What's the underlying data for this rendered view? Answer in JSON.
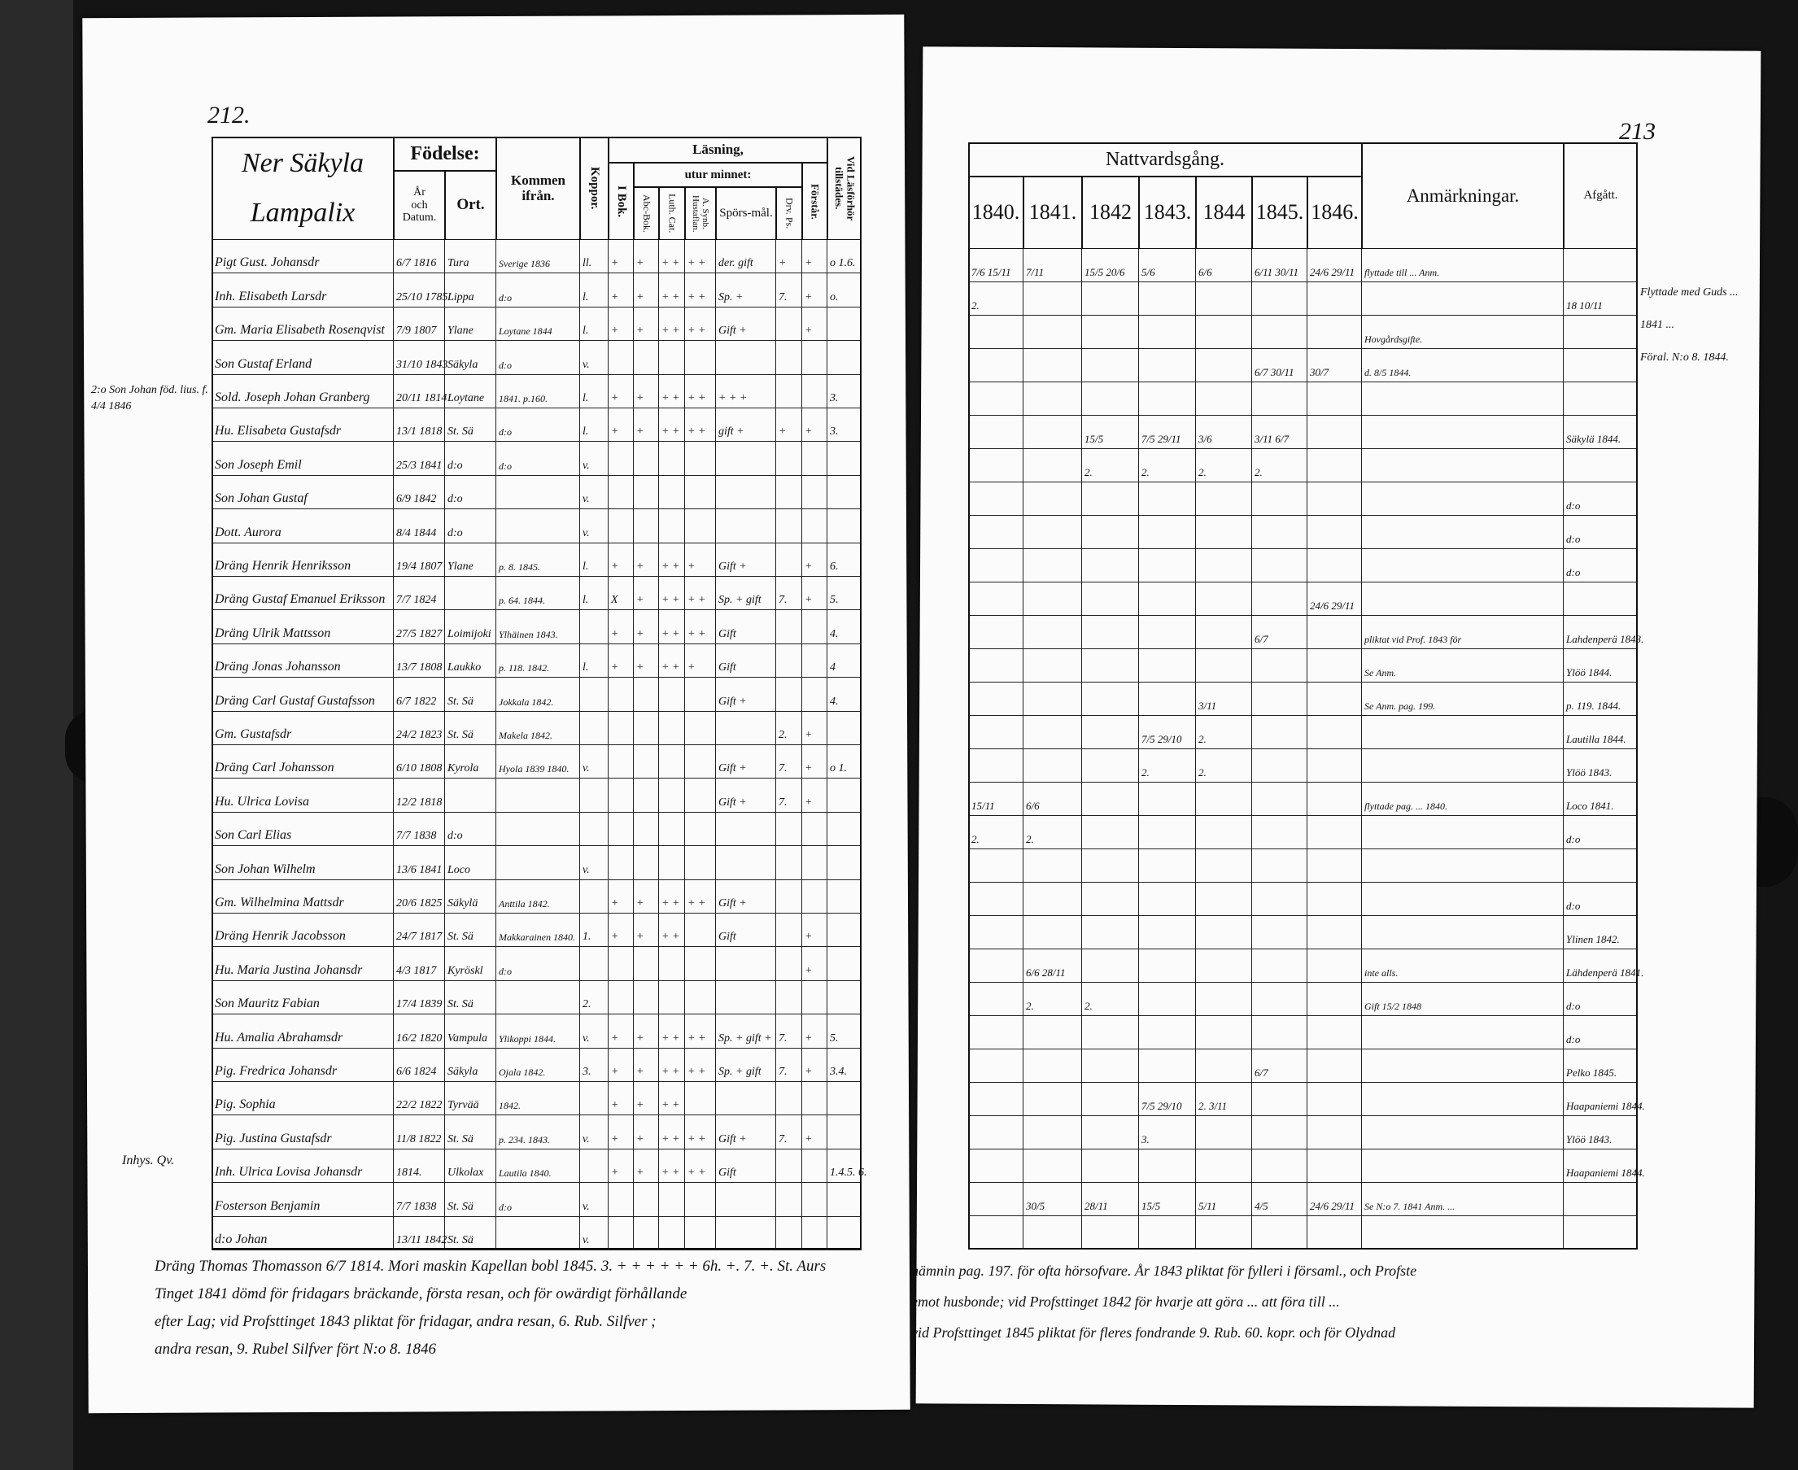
{
  "left_page": {
    "page_number": "212.",
    "parish_heading": [
      "Ner Säkyla",
      "Lampalix"
    ],
    "headers": {
      "fodelse": "Födelse:",
      "ar_och_datum": [
        "År",
        "och",
        "Datum."
      ],
      "ort": "Ort.",
      "kommen_ifran": "Kommen ifrån.",
      "koppor": "Koppor.",
      "lasning": "Läsning,",
      "i_bok": "I Bok.",
      "utur_minnet": "utur minnet:",
      "abc_bok": "Abc-Bok.",
      "luth_cat": "Luth. Cat.",
      "a_synb": "A. Synb. Hustaflan.",
      "sporsmal": "Spörs-mål.",
      "drv_ps": "Drv. Ps.",
      "forstar": "Förstår.",
      "vid_lasforhor": "Vid Läsförhör tillstädes."
    },
    "rows": [
      [
        "Pigt Gust. Johansdr",
        "6/7 1816",
        "Tura",
        "Sverige 1836",
        "ll.",
        "+",
        "+",
        "+ +",
        "+ +",
        "der. gift",
        "+",
        "+",
        "o 1.6."
      ],
      [
        "Inh. Elisabeth Larsdr",
        "25/10 1785",
        "Lippa",
        "d:o",
        "l.",
        "+",
        "+",
        "+ +",
        "+ +",
        "Sp. +",
        "7.",
        "+",
        "o."
      ],
      [
        "Gm. Maria Elisabeth Rosenqvist",
        "7/9 1807",
        "Ylane",
        "Loytane 1844",
        "l.",
        "+",
        "+",
        "+ +",
        "+ +",
        "Gift +",
        "",
        "+",
        ""
      ],
      [
        "Son Gustaf Erland",
        "31/10 1843",
        "Säkyla",
        "d:o",
        "v.",
        "",
        "",
        "",
        "",
        "",
        "",
        "",
        ""
      ],
      [
        "Sold. Joseph Johan Granberg",
        "20/11 1814",
        "Loytane",
        "1841. p.160.",
        "l.",
        "+",
        "+",
        "+ +",
        "+ +",
        "+ + +",
        "",
        "",
        "3."
      ],
      [
        "Hu. Elisabeta Gustafsdr",
        "13/1 1818",
        "St. Sä",
        "d:o",
        "l.",
        "+",
        "+",
        "+ +",
        "+ +",
        "gift +",
        "+",
        "+",
        "3."
      ],
      [
        "Son Joseph Emil",
        "25/3 1841",
        "d:o",
        "d:o",
        "v.",
        "",
        "",
        "",
        "",
        "",
        "",
        "",
        ""
      ],
      [
        "Son Johan Gustaf",
        "6/9 1842",
        "d:o",
        "",
        "v.",
        "",
        "",
        "",
        "",
        "",
        "",
        "",
        ""
      ],
      [
        "Dott. Aurora",
        "8/4 1844",
        "d:o",
        "",
        "v.",
        "",
        "",
        "",
        "",
        "",
        "",
        "",
        ""
      ],
      [
        "Dräng Henrik Henriksson",
        "19/4 1807",
        "Ylane",
        "p. 8. 1845.",
        "l.",
        "+",
        "+",
        "+ +",
        "+",
        "Gift +",
        "",
        "+",
        "6."
      ],
      [
        "Dräng Gustaf Emanuel Eriksson",
        "7/7 1824",
        "",
        "p. 64. 1844.",
        "l.",
        "X",
        "+",
        "+ +",
        "+ +",
        "Sp. + gift",
        "7.",
        "+",
        "5."
      ],
      [
        "Dräng Ulrik Mattsson",
        "27/5 1827",
        "Loimijoki",
        "Ylhäinen 1843.",
        "",
        "+",
        "+",
        "+ +",
        "+ +",
        "Gift",
        "",
        "",
        "4."
      ],
      [
        "Dräng Jonas Johansson",
        "13/7 1808",
        "Laukko",
        "p. 118. 1842.",
        "l.",
        "+",
        "+",
        "+ +",
        "+",
        "Gift",
        "",
        "",
        "4"
      ],
      [
        "Dräng Carl Gustaf Gustafsson",
        "6/7 1822",
        "St. Sä",
        "Jokkala 1842.",
        "",
        "",
        "",
        "",
        "",
        "Gift +",
        "",
        "",
        "4."
      ],
      [
        "Gm. Gustafsdr",
        "24/2 1823",
        "St. Sä",
        "Makela 1842.",
        "",
        "",
        "",
        "",
        "",
        "",
        "2.",
        "+",
        ""
      ],
      [
        "Dräng Carl Johansson",
        "6/10 1808",
        "Kyrola",
        "Hyola 1839 1840.",
        "v.",
        "",
        "",
        "",
        "",
        "Gift +",
        "7.",
        "+",
        "o 1."
      ],
      [
        "Hu. Ulrica Lovisa",
        "12/2 1818",
        "",
        "",
        "",
        "",
        "",
        "",
        "",
        "Gift +",
        "7.",
        "+",
        ""
      ],
      [
        "Son Carl Elias",
        "7/7 1838",
        "d:o",
        "",
        "",
        "",
        "",
        "",
        "",
        "",
        "",
        "",
        ""
      ],
      [
        "Son Johan Wilhelm",
        "13/6 1841",
        "Loco",
        "",
        "v.",
        "",
        "",
        "",
        "",
        "",
        "",
        "",
        ""
      ],
      [
        "Gm. Wilhelmina Mattsdr",
        "20/6 1825",
        "Säkylä",
        "Anttila 1842.",
        "",
        "+",
        "+",
        "+ +",
        "+ +",
        "Gift +",
        "",
        "",
        ""
      ],
      [
        "Dräng Henrik Jacobsson",
        "24/7 1817",
        "St. Sä",
        "Makkarainen 1840.",
        "1.",
        "+",
        "+",
        "+ +",
        "",
        "Gift",
        "",
        "+",
        ""
      ],
      [
        "Hu. Maria Justina Johansdr",
        "4/3 1817",
        "Kyröskl",
        "d:o",
        "",
        "",
        "",
        "",
        "",
        "",
        "",
        "+",
        ""
      ],
      [
        "Son Mauritz Fabian",
        "17/4 1839",
        "St. Sä",
        "",
        "2.",
        "",
        "",
        "",
        "",
        "",
        "",
        "",
        ""
      ],
      [
        "Hu. Amalia Abrahamsdr",
        "16/2 1820",
        "Vampula",
        "Ylikoppi 1844.",
        "v.",
        "+",
        "+",
        "+ +",
        "+ +",
        "Sp. + gift +",
        "7.",
        "+",
        "5."
      ],
      [
        "Pig. Fredrica Johansdr",
        "6/6 1824",
        "Säkyla",
        "Ojala 1842.",
        "3.",
        "+",
        "+",
        "+ +",
        "+ +",
        "Sp. + gift",
        "7.",
        "+",
        "3.4."
      ],
      [
        "Pig. Sophia",
        "22/2 1822",
        "Tyrvää",
        "1842.",
        "",
        "+",
        "+",
        "+ +",
        "",
        "",
        "",
        "",
        ""
      ],
      [
        "Pig. Justina Gustafsdr",
        "11/8 1822",
        "St. Sä",
        "p. 234. 1843.",
        "v.",
        "+",
        "+",
        "+ +",
        "+ +",
        "Gift +",
        "7.",
        "+",
        ""
      ],
      [
        "Inh. Ulrica Lovisa Johansdr",
        "1814.",
        "Ulkolax",
        "Lautila 1840.",
        "",
        "+",
        "+",
        "+ +",
        "+ +",
        "Gift",
        "",
        "",
        "1.4.5. 6."
      ],
      [
        "Fosterson Benjamin",
        "7/7 1838",
        "St. Sä",
        "d:o",
        "v.",
        "",
        "",
        "",
        "",
        "",
        "",
        "",
        ""
      ],
      [
        "d:o Johan",
        "13/11 1842",
        "St. Sä",
        "",
        "v.",
        "",
        "",
        "",
        "",
        "",
        "",
        "",
        ""
      ]
    ],
    "margin_notes": [
      "2:o Son Johan föd. lius. f. 4/4 1846",
      "Inhys. Qv."
    ],
    "bottom_note": [
      "Dräng Thomas Thomasson 6/7 1814. Mori maskin  Kapellan bobl 1845.  3.  +  + + +  + +  6h. +.  7. +.  St. Aurs",
      "Tinget 1841 dömd för fridagars bräckande, första resan, och för owärdigt förhållande",
      "efter Lag; vid Profsttinget 1843 pliktat för fridagar, andra resan, 6. Rub. Silfver ;",
      "andra resan,  9. Rubel Silfver        fört N:o 8. 1846"
    ]
  },
  "right_page": {
    "page_number": "213",
    "headers": {
      "nattvardsgang": "Nattvardsgång.",
      "years": [
        "1840.",
        "1841.",
        "1842",
        "1843.",
        "1844",
        "1845.",
        "1846."
      ],
      "anmarkningar": "Anmärkningar.",
      "afgatt": "Afgått."
    },
    "rows": [
      [
        "7/6 15/11",
        "7/11",
        "15/5 20/6",
        "5/6",
        "6/6",
        "6/11 30/11",
        "24/6 29/11",
        "flyttade till ... Anm.",
        ""
      ],
      [
        "2.",
        "",
        "",
        "",
        "",
        "",
        "",
        "",
        "18 10/11"
      ],
      [
        "",
        "",
        "",
        "",
        "",
        "",
        "",
        "Hovgårdsgifte.",
        ""
      ],
      [
        "",
        "",
        "",
        "",
        "",
        "6/7 30/11",
        "30/7",
        "d. 8/5 1844.",
        ""
      ],
      [
        "",
        "",
        "",
        "",
        "",
        "",
        "",
        "",
        ""
      ],
      [
        "",
        "",
        "15/5",
        "7/5 29/11",
        "3/6",
        "3/11 6/7",
        "",
        "",
        "Säkylä 1844."
      ],
      [
        "",
        "",
        "2.",
        "2.",
        "2.",
        "2.",
        "",
        "",
        ""
      ],
      [
        "",
        "",
        "",
        "",
        "",
        "",
        "",
        "",
        "d:o"
      ],
      [
        "",
        "",
        "",
        "",
        "",
        "",
        "",
        "",
        "d:o"
      ],
      [
        "",
        "",
        "",
        "",
        "",
        "",
        "",
        "",
        "d:o"
      ],
      [
        "",
        "",
        "",
        "",
        "",
        "",
        "24/6 29/11",
        "",
        ""
      ],
      [
        "",
        "",
        "",
        "",
        "",
        "6/7",
        "",
        "pliktat vid Prof. 1843 för",
        "Lahdenperä 1843."
      ],
      [
        "",
        "",
        "",
        "",
        "",
        "",
        "",
        "Se Anm.",
        "Ylöö 1844."
      ],
      [
        "",
        "",
        "",
        "",
        "3/11",
        "",
        "",
        "Se Anm. pag. 199.",
        "p. 119. 1844."
      ],
      [
        "",
        "",
        "",
        "7/5 29/10",
        "2.",
        "",
        "",
        "",
        "Lautilla 1844."
      ],
      [
        "",
        "",
        "",
        "2.",
        "2.",
        "",
        "",
        "",
        "Ylöö 1843."
      ],
      [
        "15/11",
        "6/6",
        "",
        "",
        "",
        "",
        "",
        "flyttade pag. ... 1840.",
        "Loco 1841."
      ],
      [
        "2.",
        "2.",
        "",
        "",
        "",
        "",
        "",
        "",
        "d:o"
      ],
      [
        "",
        "",
        "",
        "",
        "",
        "",
        "",
        "",
        ""
      ],
      [
        "",
        "",
        "",
        "",
        "",
        "",
        "",
        "",
        "d:o"
      ],
      [
        "",
        "",
        "",
        "",
        "",
        "",
        "",
        "",
        "Ylinen 1842."
      ],
      [
        "",
        "6/6 28/11",
        "",
        "",
        "",
        "",
        "",
        "inte alls.",
        "Lähdenperä 1841."
      ],
      [
        "",
        "2.",
        "2.",
        "",
        "",
        "",
        "",
        "Gift 15/2 1848",
        "d:o"
      ],
      [
        "",
        "",
        "",
        "",
        "",
        "",
        "",
        "",
        "d:o"
      ],
      [
        "",
        "",
        "",
        "",
        "",
        "6/7",
        "",
        "",
        "Pelko 1845."
      ],
      [
        "",
        "",
        "",
        "7/5 29/10",
        "2. 3/11",
        "",
        "",
        "",
        "Haapaniemi 1844."
      ],
      [
        "",
        "",
        "",
        "3.",
        "",
        "",
        "",
        "",
        "Ylöö 1843."
      ],
      [
        "",
        "",
        "",
        "",
        "",
        "",
        "",
        "",
        "Haapaniemi 1844."
      ],
      [
        "",
        "30/5",
        "28/11",
        "15/5",
        "5/11",
        "4/5",
        "24/6 29/11",
        "Se N:o 7. 1841 Anm. ...",
        ""
      ],
      [
        "",
        "",
        "",
        "",
        "",
        "",
        "",
        "",
        ""
      ]
    ],
    "margin_note": [
      "Flyttade med Guds ...",
      "1841 ...",
      "Föral. N:o 8. 1844."
    ],
    "bottom_note": [
      "nämnin pag. 197. för ofta hörsofvare. År 1843 pliktat för fylleri i församl., och Profste",
      "emot husbonde; vid Profsttinget 1842 för hvarje att göra ... att föra till ...",
      "vid Profsttinget 1845 pliktat för fleres fondrande 9. Rub. 60. kopr. och för Olydnad"
    ]
  }
}
